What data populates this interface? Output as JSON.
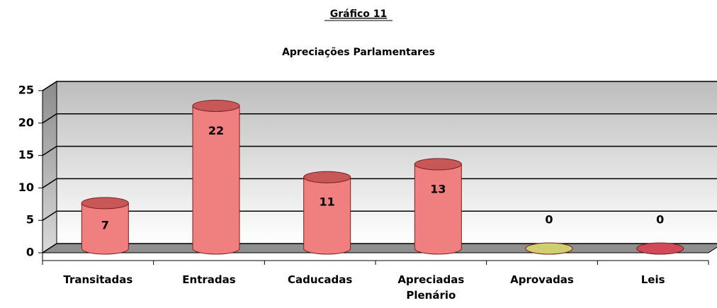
{
  "chart_data": {
    "type": "bar3d",
    "title": "Gráfico 11",
    "subtitle": "Apreciações Parlamentares",
    "categories": [
      "Transitadas",
      "Entradas",
      "Caducadas",
      "Apreciadas Plenário",
      "Aprovadas",
      "Leis"
    ],
    "values": [
      7,
      22,
      11,
      13,
      0,
      0
    ],
    "colors": [
      "#f07f7f",
      "#f07f7f",
      "#f07f7f",
      "#f07f7f",
      "#cfcf70",
      "#d04a5a"
    ],
    "ylim": [
      0,
      25
    ],
    "yticks": [
      0,
      5,
      10,
      15,
      20,
      25
    ],
    "grid": true
  }
}
